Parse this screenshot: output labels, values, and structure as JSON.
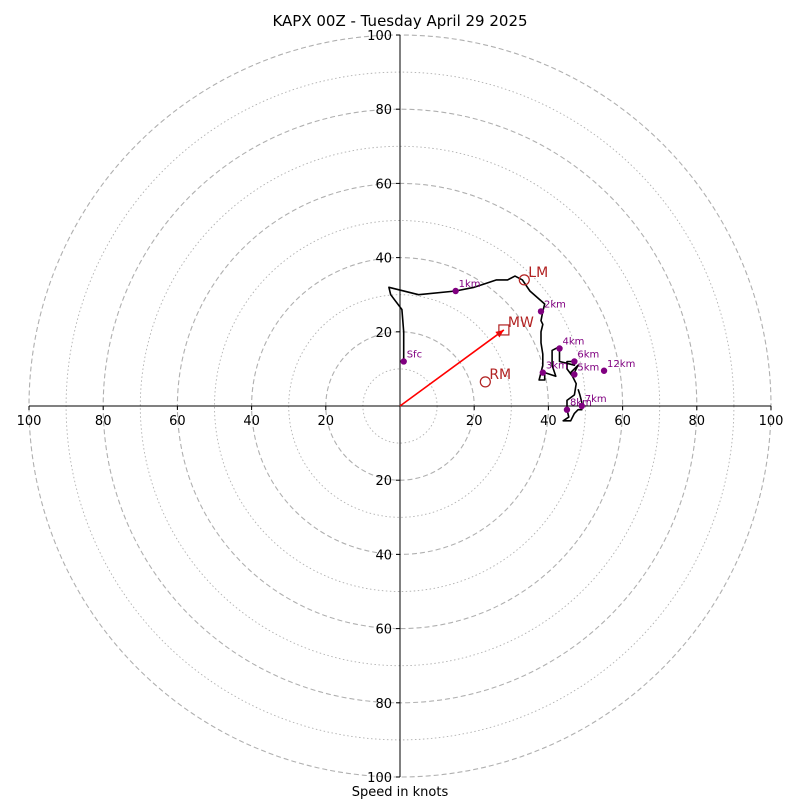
{
  "chart_data": {
    "type": "hodograph",
    "title": "KAPX 00Z - Tuesday April 29 2025",
    "xlabel": "Speed in knots",
    "range": [
      -100,
      100
    ],
    "ring_major_step": 20,
    "ring_minor_step": 10,
    "x_ticks": [
      {
        "value": -100,
        "label": "100"
      },
      {
        "value": -80,
        "label": "80"
      },
      {
        "value": -60,
        "label": "60"
      },
      {
        "value": -40,
        "label": "40"
      },
      {
        "value": -20,
        "label": "20"
      },
      {
        "value": 20,
        "label": "20"
      },
      {
        "value": 40,
        "label": "40"
      },
      {
        "value": 60,
        "label": "60"
      },
      {
        "value": 80,
        "label": "80"
      },
      {
        "value": 100,
        "label": "100"
      }
    ],
    "y_ticks": [
      {
        "value": 100,
        "label": "100"
      },
      {
        "value": 80,
        "label": "80"
      },
      {
        "value": 60,
        "label": "60"
      },
      {
        "value": 40,
        "label": "40"
      },
      {
        "value": 20,
        "label": "20"
      },
      {
        "value": -20,
        "label": "20"
      },
      {
        "value": -40,
        "label": "40"
      },
      {
        "value": -60,
        "label": "60"
      },
      {
        "value": -80,
        "label": "80"
      },
      {
        "value": -100,
        "label": "100"
      }
    ],
    "hodograph_trace": [
      [
        1,
        12
      ],
      [
        1,
        16
      ],
      [
        1,
        20
      ],
      [
        0.5,
        26
      ],
      [
        -2.5,
        30
      ],
      [
        -3,
        32
      ],
      [
        5,
        30
      ],
      [
        15,
        31
      ],
      [
        20,
        32
      ],
      [
        23,
        33
      ],
      [
        26,
        34
      ],
      [
        29,
        34
      ],
      [
        31,
        35
      ],
      [
        33,
        34
      ],
      [
        35,
        31
      ],
      [
        39,
        27.5
      ],
      [
        38.5,
        25.5
      ],
      [
        38,
        23
      ],
      [
        38.5,
        22
      ],
      [
        38,
        20
      ],
      [
        38,
        17
      ],
      [
        38.5,
        14
      ],
      [
        38.5,
        11
      ],
      [
        38,
        9
      ],
      [
        37.5,
        7
      ],
      [
        39,
        7
      ],
      [
        39,
        9
      ],
      [
        42,
        8
      ],
      [
        41,
        11
      ],
      [
        41,
        15
      ],
      [
        43,
        16
      ],
      [
        43,
        12
      ],
      [
        45,
        11.5
      ],
      [
        47,
        11
      ],
      [
        47,
        12
      ],
      [
        45,
        12
      ],
      [
        45,
        10
      ],
      [
        46.5,
        8
      ],
      [
        48,
        11
      ],
      [
        46,
        9
      ],
      [
        47.5,
        6
      ],
      [
        47,
        3
      ],
      [
        45,
        1.5
      ],
      [
        45,
        -1
      ],
      [
        45.5,
        -3
      ],
      [
        44,
        -4
      ],
      [
        46,
        -4
      ],
      [
        47,
        -2
      ],
      [
        48,
        -1
      ],
      [
        49,
        -1
      ],
      [
        49,
        1
      ],
      [
        48.5,
        3
      ],
      [
        48,
        4.5
      ]
    ],
    "height_markers": [
      {
        "label": "Sfc",
        "u": 1,
        "v": 12
      },
      {
        "label": "1km",
        "u": 15,
        "v": 31
      },
      {
        "label": "2km",
        "u": 38,
        "v": 25.5
      },
      {
        "label": "3km",
        "u": 38.5,
        "v": 9
      },
      {
        "label": "4km",
        "u": 43,
        "v": 15.5
      },
      {
        "label": "5km",
        "u": 47,
        "v": 8.5
      },
      {
        "label": "6km",
        "u": 47,
        "v": 12
      },
      {
        "label": "7km",
        "u": 49,
        "v": 0
      },
      {
        "label": "8km",
        "u": 45,
        "v": -1
      },
      {
        "label": "12km",
        "u": 55,
        "v": 9.5
      }
    ],
    "storm_motions": [
      {
        "label": "LM",
        "u": 33.5,
        "v": 34,
        "symbol": "circle"
      },
      {
        "label": "RM",
        "u": 23,
        "v": 6.5,
        "symbol": "circle"
      },
      {
        "label": "MW",
        "u": 28,
        "v": 20.5,
        "symbol": "square"
      }
    ],
    "vector": {
      "from": [
        0,
        0
      ],
      "to": [
        28,
        20.5
      ]
    },
    "colors": {
      "trace": "#000000",
      "marker": "#800080",
      "storm_motion": "#b22222",
      "vector": "#ff0000",
      "ring": "#b0b0b0",
      "axis": "#000000"
    }
  }
}
